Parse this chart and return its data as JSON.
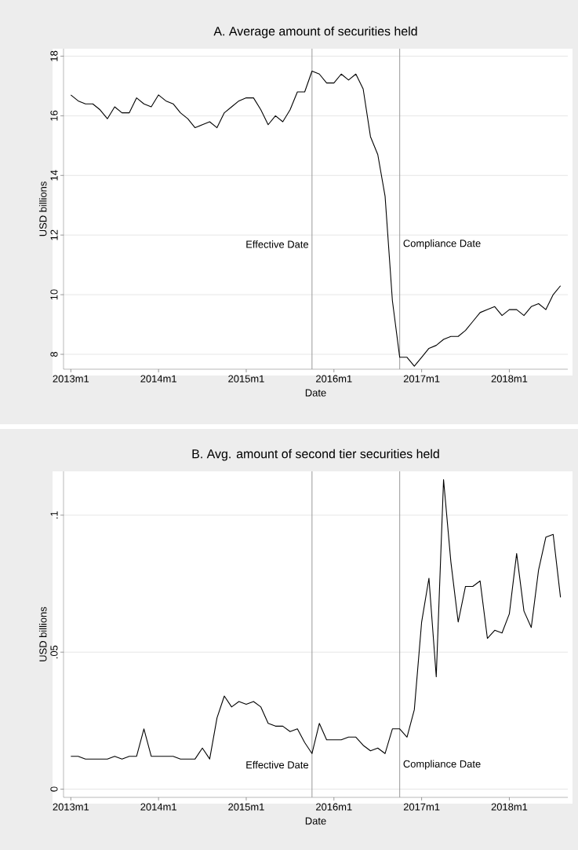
{
  "chart_data": [
    {
      "type": "line",
      "title": "A. Average amount of securities held",
      "xlabel": "Date",
      "ylabel": "USD billions",
      "x": [
        "2013-01",
        "2013-02",
        "2013-03",
        "2013-04",
        "2013-05",
        "2013-06",
        "2013-07",
        "2013-08",
        "2013-09",
        "2013-10",
        "2013-11",
        "2013-12",
        "2014-01",
        "2014-02",
        "2014-03",
        "2014-04",
        "2014-05",
        "2014-06",
        "2014-07",
        "2014-08",
        "2014-09",
        "2014-10",
        "2014-11",
        "2014-12",
        "2015-01",
        "2015-02",
        "2015-03",
        "2015-04",
        "2015-05",
        "2015-06",
        "2015-07",
        "2015-08",
        "2015-09",
        "2015-10",
        "2015-11",
        "2015-12",
        "2016-01",
        "2016-02",
        "2016-03",
        "2016-04",
        "2016-05",
        "2016-06",
        "2016-07",
        "2016-08",
        "2016-09",
        "2016-10",
        "2016-11",
        "2016-12",
        "2017-01",
        "2017-02",
        "2017-03",
        "2017-04",
        "2017-05",
        "2017-06",
        "2017-07",
        "2017-08",
        "2017-09",
        "2017-10",
        "2017-11",
        "2017-12",
        "2018-01",
        "2018-02",
        "2018-03",
        "2018-04",
        "2018-05",
        "2018-06",
        "2018-07",
        "2018-08"
      ],
      "series": [
        {
          "color": "#000000",
          "values": [
            16.7,
            16.5,
            16.4,
            16.4,
            16.2,
            15.9,
            16.3,
            16.1,
            16.1,
            16.6,
            16.4,
            16.3,
            16.7,
            16.5,
            16.4,
            16.1,
            15.9,
            15.6,
            15.7,
            15.8,
            15.6,
            16.1,
            16.3,
            16.5,
            16.6,
            16.6,
            16.2,
            15.7,
            16.0,
            15.8,
            16.2,
            16.8,
            16.8,
            17.5,
            17.4,
            17.1,
            17.1,
            17.4,
            17.2,
            17.4,
            16.9,
            15.3,
            14.7,
            13.3,
            9.8,
            7.9,
            7.9,
            7.6,
            7.9,
            8.2,
            8.3,
            8.5,
            8.6,
            8.6,
            8.8,
            9.1,
            9.4,
            9.5,
            9.6,
            9.3,
            9.5,
            9.5,
            9.3,
            9.6,
            9.7,
            9.5,
            10.0,
            10.3
          ]
        }
      ],
      "xlim": [
        "2012-12",
        "2018-09"
      ],
      "ylim": [
        7.5,
        18.25
      ],
      "xticks": [
        {
          "value": "2013-01",
          "label": "2013m1"
        },
        {
          "value": "2014-01",
          "label": "2014m1"
        },
        {
          "value": "2015-01",
          "label": "2015m1"
        },
        {
          "value": "2016-01",
          "label": "2016m1"
        },
        {
          "value": "2017-01",
          "label": "2017m1"
        },
        {
          "value": "2018-01",
          "label": "2018m1"
        }
      ],
      "yticks": [
        8,
        10,
        12,
        14,
        16,
        18
      ],
      "grid": "y",
      "ref_lines": [
        {
          "axis": "x",
          "value": "2015-10",
          "label": "Effective Date",
          "color": "#999999"
        },
        {
          "axis": "x",
          "value": "2016-10",
          "label": "Compliance Date",
          "color": "#999999"
        }
      ]
    },
    {
      "type": "line",
      "title": "B. Avg. amount of second tier securities held",
      "xlabel": "Date",
      "ylabel": "USD billions",
      "x": [
        "2013-01",
        "2013-02",
        "2013-03",
        "2013-04",
        "2013-05",
        "2013-06",
        "2013-07",
        "2013-08",
        "2013-09",
        "2013-10",
        "2013-11",
        "2013-12",
        "2014-01",
        "2014-02",
        "2014-03",
        "2014-04",
        "2014-05",
        "2014-06",
        "2014-07",
        "2014-08",
        "2014-09",
        "2014-10",
        "2014-11",
        "2014-12",
        "2015-01",
        "2015-02",
        "2015-03",
        "2015-04",
        "2015-05",
        "2015-06",
        "2015-07",
        "2015-08",
        "2015-09",
        "2015-10",
        "2015-11",
        "2015-12",
        "2016-01",
        "2016-02",
        "2016-03",
        "2016-04",
        "2016-05",
        "2016-06",
        "2016-07",
        "2016-08",
        "2016-09",
        "2016-10",
        "2016-11",
        "2016-12",
        "2017-01",
        "2017-02",
        "2017-03",
        "2017-04",
        "2017-05",
        "2017-06",
        "2017-07",
        "2017-08",
        "2017-09",
        "2017-10",
        "2017-11",
        "2017-12",
        "2018-01",
        "2018-02",
        "2018-03",
        "2018-04",
        "2018-05",
        "2018-06",
        "2018-07",
        "2018-08"
      ],
      "series": [
        {
          "color": "#000000",
          "values": [
            0.012,
            0.012,
            0.011,
            0.011,
            0.011,
            0.011,
            0.012,
            0.011,
            0.012,
            0.012,
            0.022,
            0.012,
            0.012,
            0.012,
            0.012,
            0.011,
            0.011,
            0.011,
            0.015,
            0.011,
            0.026,
            0.034,
            0.03,
            0.032,
            0.031,
            0.032,
            0.03,
            0.024,
            0.023,
            0.023,
            0.021,
            0.022,
            0.017,
            0.013,
            0.024,
            0.018,
            0.018,
            0.018,
            0.019,
            0.019,
            0.016,
            0.014,
            0.015,
            0.013,
            0.022,
            0.022,
            0.019,
            0.029,
            0.061,
            0.077,
            0.041,
            0.113,
            0.083,
            0.061,
            0.074,
            0.074,
            0.076,
            0.055,
            0.058,
            0.057,
            0.064,
            0.086,
            0.065,
            0.059,
            0.08,
            0.092,
            0.093,
            0.07
          ]
        }
      ],
      "xlim": [
        "2012-12",
        "2018-09"
      ],
      "ylim": [
        -0.003,
        0.116
      ],
      "xticks": [
        {
          "value": "2013-01",
          "label": "2013m1"
        },
        {
          "value": "2014-01",
          "label": "2014m1"
        },
        {
          "value": "2015-01",
          "label": "2015m1"
        },
        {
          "value": "2016-01",
          "label": "2016m1"
        },
        {
          "value": "2017-01",
          "label": "2017m1"
        },
        {
          "value": "2018-01",
          "label": "2018m1"
        }
      ],
      "yticks": [
        0,
        {
          "value": 0.05,
          "label": ".05"
        },
        {
          "value": 0.1,
          "label": ".1"
        }
      ],
      "grid": "y",
      "ref_lines": [
        {
          "axis": "x",
          "value": "2015-10",
          "label": "Effective Date",
          "color": "#999999"
        },
        {
          "axis": "x",
          "value": "2016-10",
          "label": "Compliance Date",
          "color": "#999999"
        }
      ]
    }
  ]
}
